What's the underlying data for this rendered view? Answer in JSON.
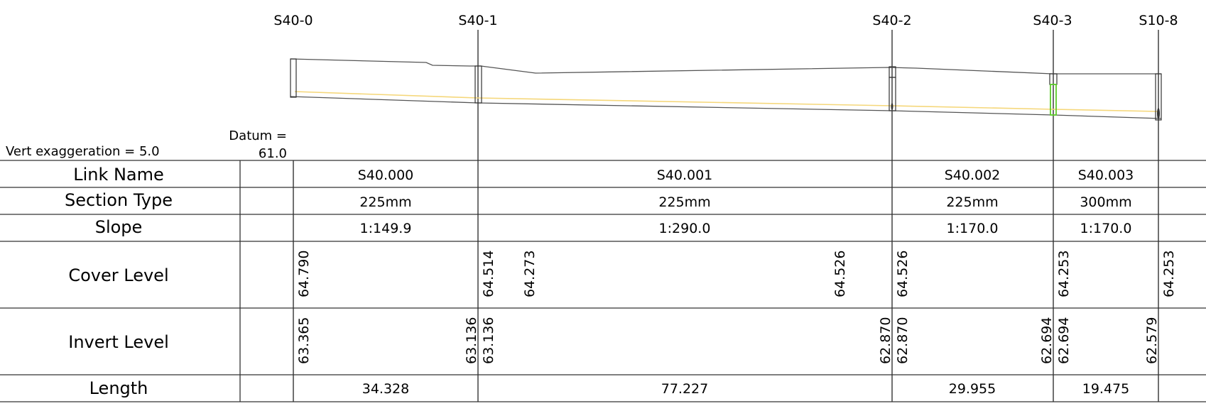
{
  "manholes": [
    {
      "name": "S40-0"
    },
    {
      "name": "S40-1"
    },
    {
      "name": "S40-2"
    },
    {
      "name": "S40-3"
    },
    {
      "name": "S10-8"
    }
  ],
  "vert_exaggeration": "Vert exaggeration = 5.0",
  "datum": {
    "line1": "Datum =",
    "line2": "61.0"
  },
  "rows": {
    "link_name": "Link Name",
    "section_type": "Section Type",
    "slope": "Slope",
    "cover_level": "Cover Level",
    "invert_level": "Invert Level",
    "length": "Length"
  },
  "links": [
    {
      "name": "S40.000",
      "section": "225mm",
      "slope": "1:149.9",
      "length": "34.328"
    },
    {
      "name": "S40.001",
      "section": "225mm",
      "slope": "1:290.0",
      "length": "77.227"
    },
    {
      "name": "S40.002",
      "section": "225mm",
      "slope": "1:170.0",
      "length": "29.955"
    },
    {
      "name": "S40.003",
      "section": "300mm",
      "slope": "1:170.0",
      "length": "19.475"
    }
  ],
  "cover_levels": [
    "64.790",
    "64.514",
    "64.273",
    "64.526",
    "64.526",
    "64.253",
    "64.253"
  ],
  "invert_levels": [
    "63.365",
    "63.136",
    "63.136",
    "62.870",
    "62.870",
    "62.694",
    "62.694",
    "62.579"
  ],
  "colors": {
    "water_line": "#f5d77a",
    "highlight_manhole": "#5dcc2a",
    "line": "#333333"
  }
}
